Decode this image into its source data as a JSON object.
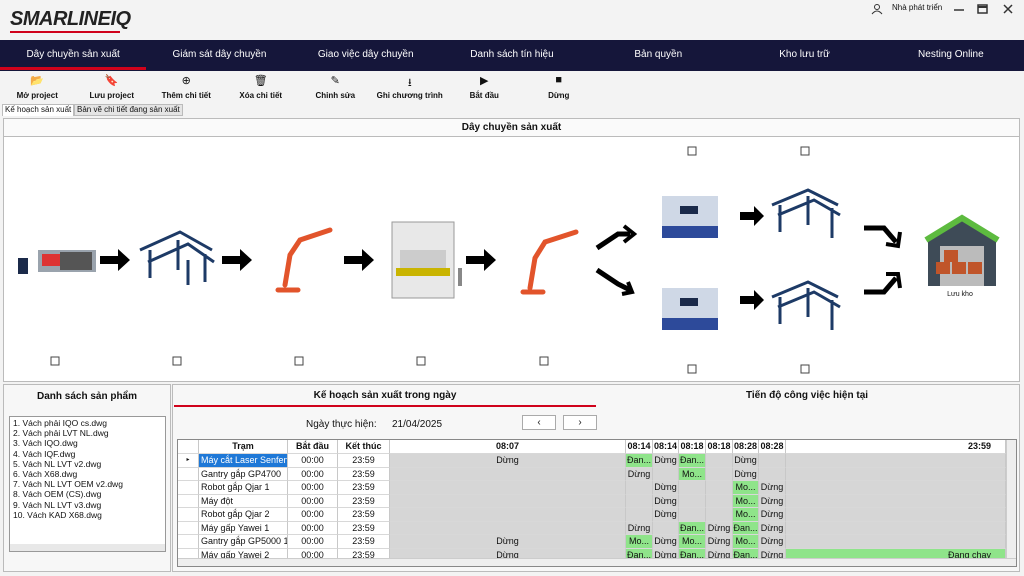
{
  "header": {
    "logo": "SMARLINEIQ",
    "user": "Nhà phát triển"
  },
  "nav": [
    "Dây chuyền sản xuất",
    "Giám sát dây chuyền",
    "Giao việc dây chuyền",
    "Danh sách tín hiệu",
    "Bản quyền",
    "Kho lưu trữ",
    "Nesting Online"
  ],
  "toolbar": [
    "Mở project",
    "Lưu project",
    "Thêm chi tiết",
    "Xóa chi tiết",
    "Chỉnh sửa",
    "Ghi chương trình",
    "Bắt đầu",
    "Dừng"
  ],
  "tabs": [
    "Kế hoạch sản xuất",
    "Bản vẽ chi tiết đang sản xuất"
  ],
  "diagram": {
    "title": "Dây chuyền sản xuất",
    "warehouse": "Lưu kho"
  },
  "products": {
    "title": "Danh sách sản phẩm",
    "items": [
      "1. Vách phải IQO cs.dwg",
      "2. Vách phải LVT NL.dwg",
      "3. Vách IQO.dwg",
      "4. Vách IQF.dwg",
      "5. Vách NL LVT v2.dwg",
      "6. Vách X68.dwg",
      "7. Vách NL LVT OEM v2.dwg",
      "8. Vách OEM (CS).dwg",
      "9. Vách NL LVT v3.dwg",
      "10. Vách KAD X68.dwg"
    ]
  },
  "plan": {
    "tabs": [
      "Kế hoạch sản xuất trong ngày",
      "Tiến độ công việc hiện tại"
    ],
    "date_label": "Ngày thực hiện:",
    "date": "21/04/2025",
    "columns": [
      "Trạm",
      "Bắt đầu",
      "Kết thúc",
      "08:07",
      "08:14",
      "08:14",
      "08:18",
      "08:18",
      "08:28",
      "08:28",
      "23:59"
    ],
    "rows": [
      [
        "Máy cắt Laser Senfeng",
        "00:00",
        "23:59",
        "Dừng",
        "Đan...",
        "Dừng",
        "Đan...",
        null,
        "Dừng",
        null,
        null
      ],
      [
        "Gantry gắp GP4700",
        "00:00",
        "23:59",
        null,
        "Dừng",
        null,
        "Mo...",
        null,
        "Dừng",
        null,
        null
      ],
      [
        "Robot gắp Qjar 1",
        "00:00",
        "23:59",
        null,
        null,
        "Dừng",
        null,
        null,
        "Mo...",
        "Dừng",
        null
      ],
      [
        "Máy đột",
        "00:00",
        "23:59",
        null,
        null,
        "Dừng",
        null,
        null,
        "Mo...",
        "Dừng",
        null
      ],
      [
        "Robot gắp Qjar 2",
        "00:00",
        "23:59",
        null,
        null,
        "Dừng",
        null,
        null,
        "Mo...",
        "Dừng",
        null
      ],
      [
        "Máy gấp Yawei 1",
        "00:00",
        "23:59",
        null,
        "Dừng",
        null,
        "Đan...",
        "Dừng",
        "Đan...",
        "Dừng",
        null
      ],
      [
        "Gantry gắp GP5000 1",
        "00:00",
        "23:59",
        "Dừng",
        "Mo...",
        "Dừng",
        "Mo...",
        "Dừng",
        "Mo...",
        "Dừng",
        null
      ],
      [
        "Máy gấp Yawei 2",
        "00:00",
        "23:59",
        "Dừng",
        "Đan...",
        "Dừng",
        "Đan...",
        "Dừng",
        "Đan...",
        "Dừng",
        "Đang chạy"
      ]
    ]
  }
}
